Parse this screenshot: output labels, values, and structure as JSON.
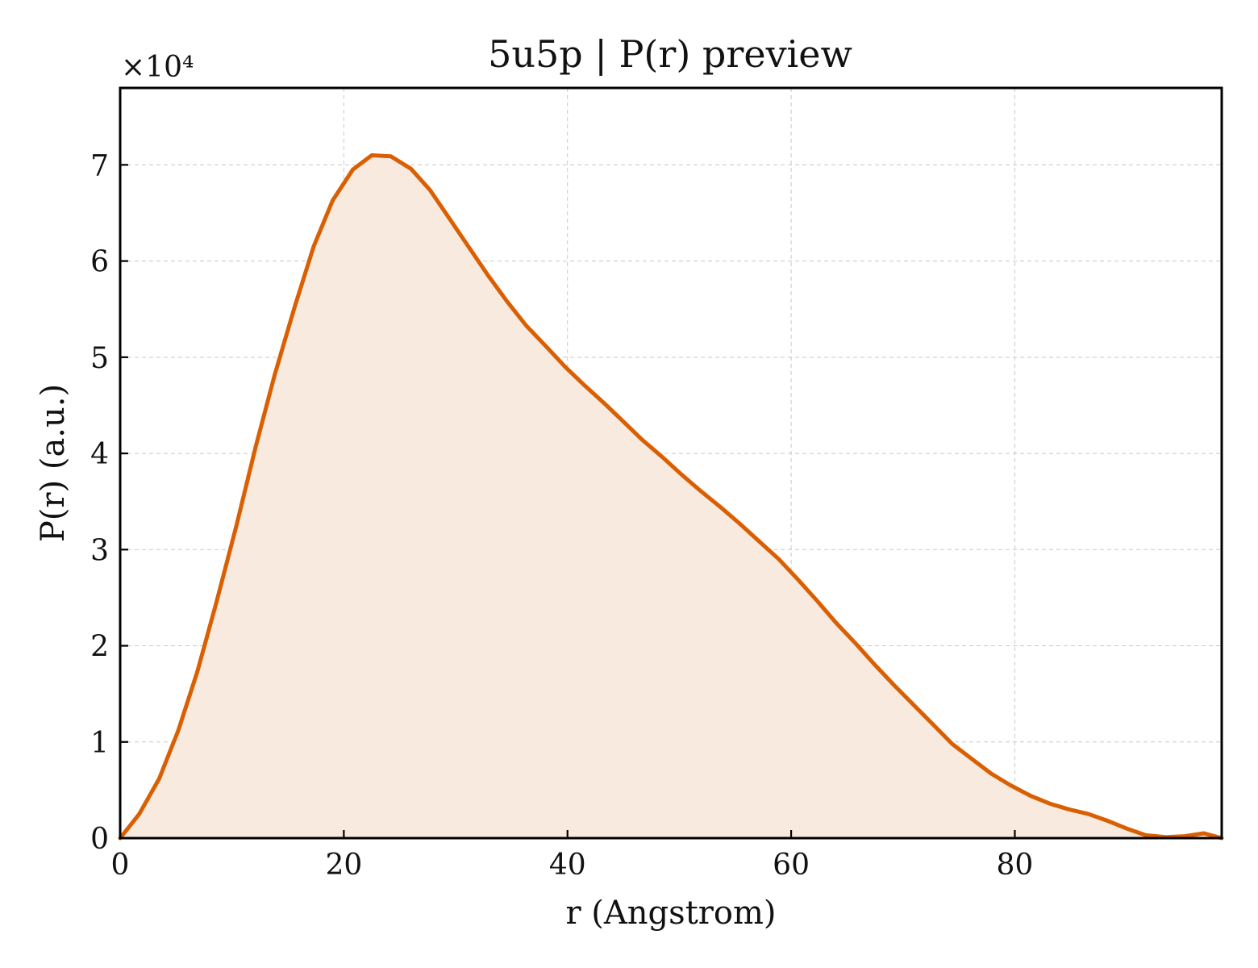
{
  "chart_data": {
    "type": "area",
    "title": "5u5p | P(r) preview",
    "xlabel": "r (Angstrom)",
    "ylabel": "P(r) (a.u.)",
    "y_multiplier_label": "×10⁴",
    "xlim": [
      0,
      98.5
    ],
    "ylim": [
      0,
      78000
    ],
    "x_ticks": [
      0,
      20,
      40,
      60,
      80
    ],
    "y_ticks": [
      0,
      10000,
      20000,
      30000,
      40000,
      50000,
      60000,
      70000
    ],
    "x_tick_labels": [
      "0",
      "20",
      "40",
      "60",
      "80"
    ],
    "y_tick_labels": [
      "0",
      "1",
      "2",
      "3",
      "4",
      "5",
      "6",
      "7"
    ],
    "grid": true,
    "legend": "none",
    "colors": {
      "line": "#d95f02",
      "fill": "#f9eadf"
    },
    "series": [
      {
        "x": [
          0,
          1.7,
          3.5,
          5.2,
          6.9,
          8.6,
          10.4,
          12.1,
          13.8,
          15.6,
          17.3,
          19.0,
          20.8,
          22.5,
          24.2,
          26.0,
          27.7,
          29.4,
          31.2,
          32.9,
          34.6,
          36.3,
          38.1,
          39.8,
          41.5,
          43.3,
          45.0,
          46.7,
          48.5,
          50.2,
          51.9,
          53.7,
          55.4,
          57.1,
          58.9,
          60.6,
          62.3,
          64.0,
          65.8,
          67.5,
          69.2,
          71.0,
          72.7,
          74.4,
          76.2,
          77.9,
          79.6,
          81.4,
          83.1,
          84.8,
          86.6,
          88.3,
          90.0,
          91.7,
          93.5,
          95.2,
          96.9,
          98.5
        ],
        "y": [
          0,
          2500,
          6200,
          11200,
          17300,
          24500,
          32500,
          40600,
          48100,
          55200,
          61500,
          66300,
          69500,
          71000,
          70900,
          69600,
          67400,
          64500,
          61400,
          58500,
          55800,
          53300,
          51100,
          49000,
          47100,
          45200,
          43300,
          41400,
          39600,
          37800,
          36100,
          34400,
          32700,
          30900,
          29000,
          26900,
          24700,
          22400,
          20200,
          18000,
          15900,
          13800,
          11800,
          9800,
          8200,
          6700,
          5500,
          4400,
          3600,
          3000,
          2500,
          1800,
          1000,
          300,
          100,
          200,
          500,
          0
        ]
      }
    ]
  }
}
